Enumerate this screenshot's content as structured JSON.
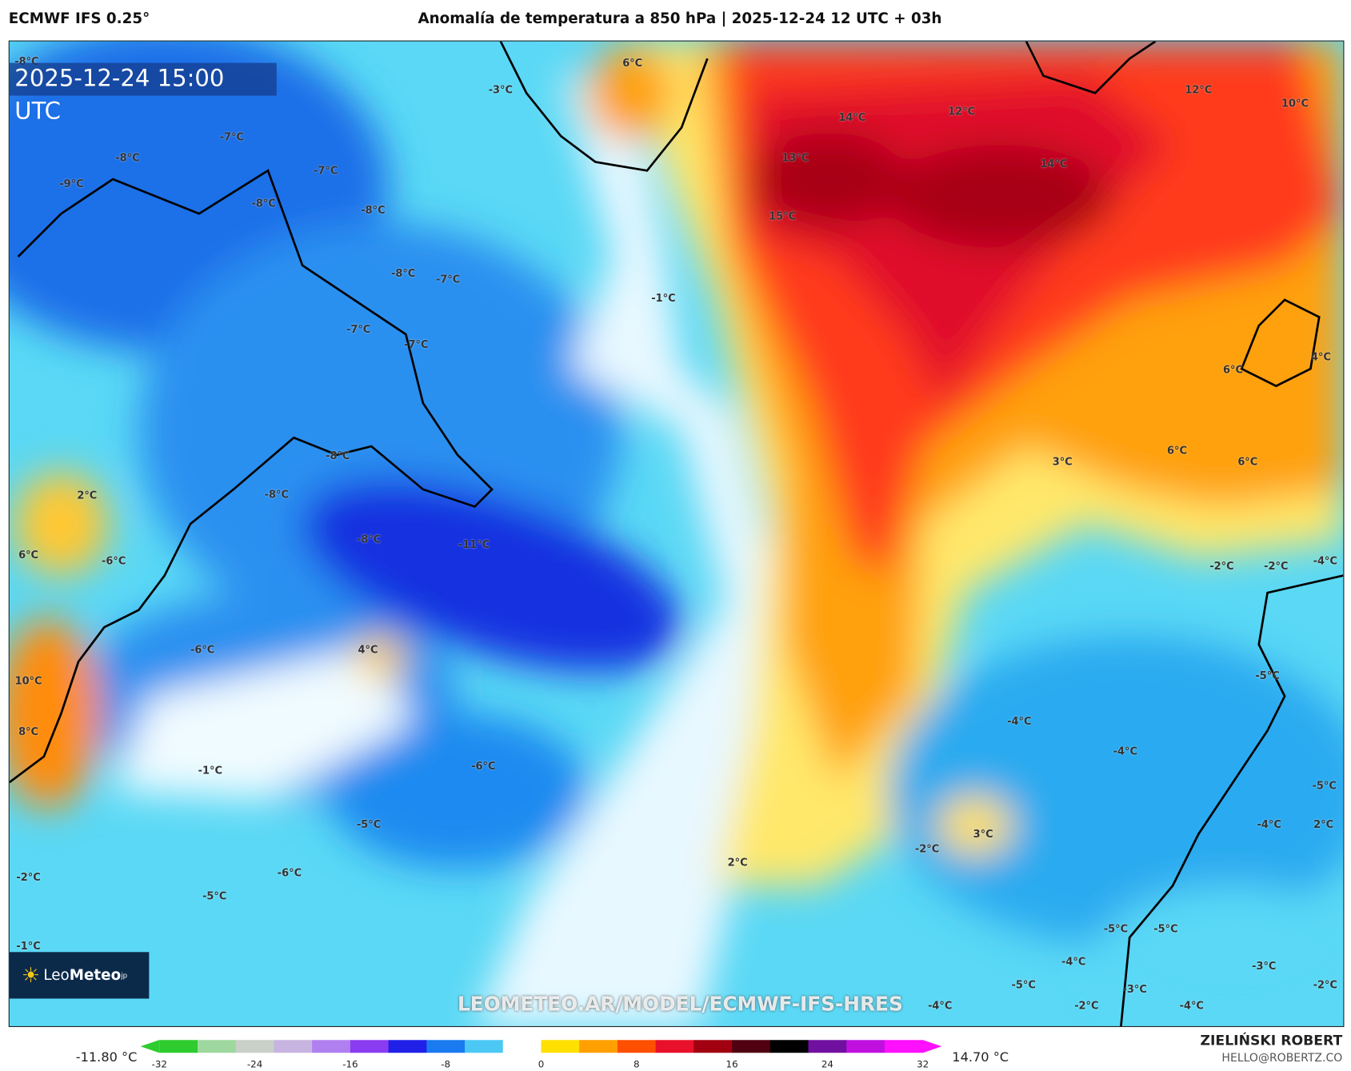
{
  "header": {
    "model": "ECMWF IFS 0.25°",
    "title": "Anomalía de temperatura a 850 hPa | 2025-12-24 12 UTC + 03h"
  },
  "map": {
    "valid_time": "2025-12-24 15:00 UTC",
    "watermark": "LEOMETEO.AR/MODEL/ECMWF-IFS-HRES",
    "logo": {
      "text_a": "Leo",
      "text_b": "Meteo",
      "suffix": "jp"
    },
    "labels": [
      "-8°C",
      "-3°C",
      "6°C",
      "12°C",
      "10°C",
      "-7°C",
      "-8°C",
      "14°C",
      "12°C",
      "-9°C",
      "-7°C",
      "13°C",
      "14°C",
      "-8°C",
      "-8°C",
      "15°C",
      "-8°C",
      "-7°C",
      "-1°C",
      "-7°C",
      "-7°C",
      "6°C",
      "4°C",
      "-8°C",
      "3°C",
      "6°C",
      "6°C",
      "2°C",
      "-8°C",
      "-8°C",
      "-11°C",
      "-6°C",
      "6°C",
      "-2°C",
      "-2°C",
      "-4°C",
      "-6°C",
      "4°C",
      "10°C",
      "-5°C",
      "-4°C",
      "8°C",
      "-4°C",
      "-6°C",
      "-1°C",
      "-5°C",
      "-5°C",
      "3°C",
      "-2°C",
      "-4°C",
      "2°C",
      "2°C",
      "-2°C",
      "-6°C",
      "-5°C",
      "-5°C",
      "-5°C",
      "-1°C",
      "-4°C",
      "-3°C",
      "-5°C",
      "-2°C",
      "-3°C",
      "-4°C",
      "-2°C",
      "-4°C"
    ]
  },
  "colorbar": {
    "min_label": "-11.80 °C",
    "max_label": "14.70 °C",
    "ticks": [
      "-32",
      "-24",
      "-16",
      "-8",
      "0",
      "8",
      "16",
      "24",
      "32"
    ],
    "range": [
      -32,
      32
    ],
    "colors": [
      "#2ecc2e",
      "#9ed89e",
      "#c8d0c8",
      "#c8b4e0",
      "#b080f0",
      "#8a3cf0",
      "#2020e8",
      "#1a7af0",
      "#4cc8f5",
      "#ffffff",
      "#ffe000",
      "#ffa000",
      "#ff5000",
      "#e8102a",
      "#a00010",
      "#500010",
      "#000000",
      "#7010a0",
      "#c010e0",
      "#ff10ff"
    ]
  },
  "credit": {
    "author": "ZIELIŃSKI ROBERT",
    "email": "HELLO@ROBERTZ.CO"
  }
}
